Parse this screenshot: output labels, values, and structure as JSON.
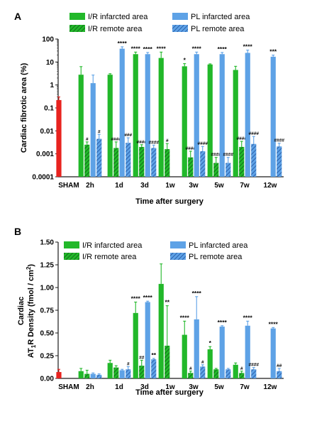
{
  "colors": {
    "sham": "#e8231f",
    "ir": "#22b82a",
    "ir_dark": "#1e7d26",
    "pl": "#5ea2e6",
    "pl_dark": "#2f63b8",
    "axis": "#1a1a1a"
  },
  "legend": {
    "ir_infarcted": "I/R infarcted area",
    "ir_remote": "I/R remote area",
    "pl_infarcted": "PL infarcted area",
    "pl_remote": "PL remote area"
  },
  "chart_data": [
    {
      "panel": "A",
      "type": "bar",
      "log_scale": true,
      "ylabel": "Cardiac fibrotic area (%)",
      "xlabel": "Time after surgery",
      "ylim": [
        0.0001,
        100
      ],
      "yticks": [
        "0.0001",
        "0.001",
        "0.01",
        "0.1",
        "1",
        "10",
        "100"
      ],
      "categories": [
        "SHAM",
        "2h",
        "1d",
        "3d",
        "1w",
        "3w",
        "5w",
        "7w",
        "12w"
      ],
      "sham": {
        "value": 0.22,
        "err": 0.08
      },
      "series": [
        {
          "name": "I/R infarcted area",
          "values": [
            null,
            2.8,
            2.8,
            22,
            15,
            6.5,
            7.8,
            4.5,
            null
          ],
          "err": [
            null,
            3.5,
            0.3,
            5,
            12,
            2,
            0.5,
            2,
            null
          ],
          "labels": [
            "",
            "",
            "",
            "****",
            "****",
            "*",
            "",
            "",
            ""
          ]
        },
        {
          "name": "I/R remote area",
          "values": [
            null,
            0.0025,
            0.0018,
            0.002,
            0.0016,
            0.0007,
            0.0004,
            0.002,
            null
          ],
          "err": [
            null,
            0.0008,
            0.0015,
            0.0005,
            0.0012,
            0.0006,
            0.0003,
            0.0015,
            null
          ],
          "labels": [
            "",
            "#",
            "####",
            "####",
            "#",
            "####",
            "####",
            "####",
            ""
          ]
        },
        {
          "name": "PL infarcted area",
          "values": [
            null,
            1.2,
            38,
            22,
            null,
            22,
            22,
            25,
            17
          ],
          "err": [
            null,
            1.5,
            8,
            4,
            null,
            5,
            4,
            8,
            3
          ],
          "labels": [
            "",
            "",
            "****",
            "****",
            "",
            "****",
            "****",
            "****",
            "***"
          ]
        },
        {
          "name": "PL remote area",
          "values": [
            null,
            0.0045,
            0.003,
            0.0018,
            null,
            0.0013,
            0.0004,
            0.0027,
            0.0021
          ],
          "err": [
            null,
            0.0025,
            0.002,
            0.0006,
            null,
            0.0008,
            0.0003,
            0.003,
            0.0008
          ],
          "labels": [
            "",
            "#",
            "###",
            "####",
            "",
            "####",
            "####",
            "####",
            "####"
          ]
        }
      ]
    },
    {
      "panel": "B",
      "type": "bar",
      "log_scale": false,
      "ylabel_line1": "Cardiac",
      "ylabel_line2": "AT",
      "ylabel_sub": "1",
      "ylabel_rest": "R Density (fmol / cm",
      "ylabel_sup": "2",
      "ylabel_end": ")",
      "xlabel": "Time after surgery",
      "ylim": [
        0,
        1.5
      ],
      "yticks": [
        "0.00",
        "0.25",
        "0.50",
        "0.75",
        "1.00",
        "1.25",
        "1.50"
      ],
      "categories": [
        "SHAM",
        "2h",
        "1d",
        "3d",
        "1w",
        "3w",
        "5w",
        "7w",
        "12w"
      ],
      "sham": {
        "value": 0.07,
        "err": 0.03
      },
      "series": [
        {
          "name": "I/R infarcted area",
          "values": [
            null,
            0.08,
            0.17,
            0.72,
            1.04,
            0.48,
            0.32,
            0.15,
            null
          ],
          "err": [
            null,
            0.03,
            0.03,
            0.12,
            0.22,
            0.15,
            0.03,
            0.02,
            null
          ],
          "labels": [
            "",
            "",
            "",
            "****",
            "",
            "****",
            "*",
            "",
            ""
          ]
        },
        {
          "name": "I/R remote area",
          "values": [
            null,
            0.05,
            0.12,
            0.14,
            0.36,
            0.06,
            0.1,
            0.06,
            null
          ],
          "err": [
            null,
            0.04,
            0.02,
            0.06,
            0.44,
            0.02,
            0.01,
            0.02,
            null
          ],
          "labels": [
            "",
            "",
            "",
            "##",
            "**",
            "#",
            "",
            "#",
            ""
          ]
        },
        {
          "name": "PL infarcted area",
          "values": [
            null,
            0.05,
            0.09,
            0.84,
            null,
            0.65,
            0.57,
            0.58,
            0.55
          ],
          "err": [
            null,
            0.01,
            0.01,
            0.01,
            null,
            0.25,
            0.01,
            0.05,
            0.01
          ],
          "labels": [
            "",
            "",
            "",
            "****",
            "",
            "****",
            "****",
            "****",
            "****"
          ]
        },
        {
          "name": "PL remote area",
          "values": [
            null,
            0.04,
            0.1,
            0.21,
            null,
            0.13,
            0.1,
            0.1,
            0.08
          ],
          "err": [
            null,
            0.01,
            0.03,
            0.01,
            null,
            0.02,
            0.01,
            0.02,
            0.03
          ],
          "labels": [
            "",
            "",
            "#",
            "**",
            "",
            "#",
            "",
            "####",
            "##"
          ]
        }
      ]
    }
  ]
}
